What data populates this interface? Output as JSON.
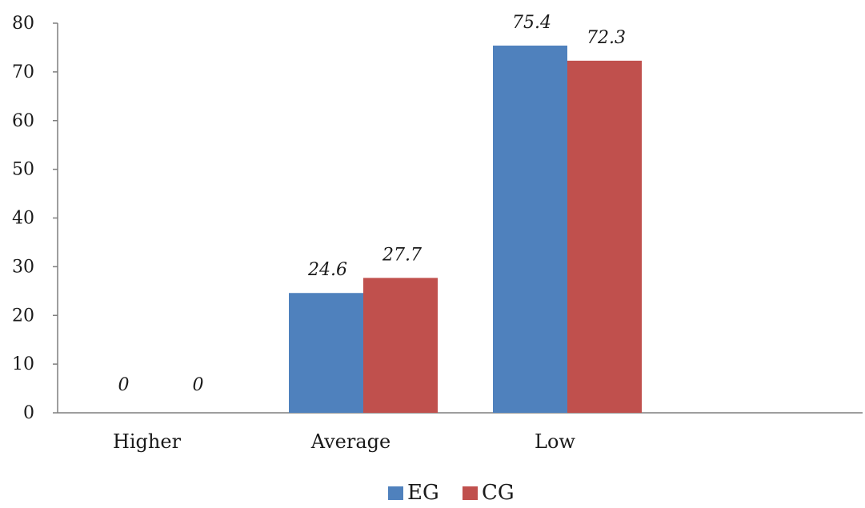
{
  "chart_data": {
    "type": "bar",
    "categories": [
      "Higher",
      "Average",
      "Low"
    ],
    "series": [
      {
        "name": "EG",
        "color": "#4F81BD",
        "values": [
          0,
          24.6,
          75.4
        ]
      },
      {
        "name": "CG",
        "color": "#C0504D",
        "values": [
          0,
          27.7,
          72.3
        ]
      }
    ],
    "data_labels": [
      [
        "0",
        "24.6",
        "75.4"
      ],
      [
        "0",
        "27.7",
        "72.3"
      ]
    ],
    "ylim": [
      0,
      80
    ],
    "yticks": [
      0,
      10,
      20,
      30,
      40,
      50,
      60,
      70,
      80
    ],
    "grid": false,
    "legend_position": "bottom"
  }
}
